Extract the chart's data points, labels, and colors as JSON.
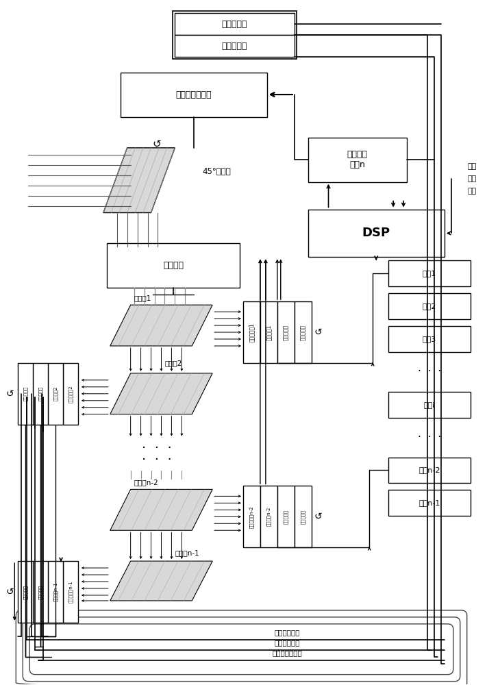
{
  "bg": "#ffffff",
  "lc": "#000000",
  "fc": "#ffffff",
  "grayfc": "#e8e8e8",
  "top_gyro": "角速率陀螺",
  "top_encoder": "光电编码器",
  "servo_motor": "扫描镜伺服电机",
  "scan_mirror_label": "45°扫描镜",
  "optics": "光学镜组",
  "power_amp": "功率放大\n电路n",
  "dsp": "DSP",
  "scan_cmd": "扫描\n运动\n指令",
  "fen1": "分光镜1",
  "fen2": "分光镜2",
  "fenn2": "分光镜n-2",
  "fenn1": "分光镜n-1",
  "sens1": [
    "成像探测器1",
    "伺服电机1",
    "角速率陀螺",
    "光电编码器"
  ],
  "sens2": [
    "成像探测器2",
    "伺服电机2",
    "角速率陀螺",
    "光电编码器"
  ],
  "sensn2": [
    "成像探测器n-2",
    "伺服电机n-2",
    "角速率陀螺",
    "光电编码器"
  ],
  "sensn1": [
    "成像探测器n-1",
    "伺服电机n-1",
    "角速率陀螺",
    "光电编码器"
  ],
  "gf": [
    "功放1",
    "功放2",
    "功放3",
    "·",
    "功放i",
    "·",
    "功放n-2",
    "功放n-1"
  ],
  "bus": [
    "控制信号总线",
    "陀螺信号总线",
    "编码器信号总线"
  ]
}
